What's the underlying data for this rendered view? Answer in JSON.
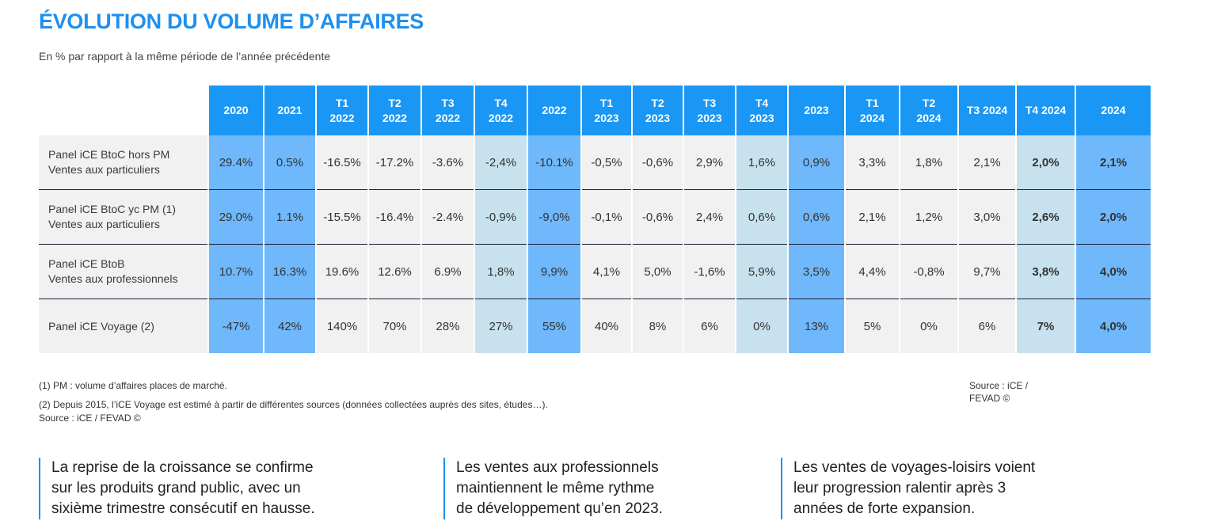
{
  "title": "ÉVOLUTION DU VOLUME D’AFFAIRES",
  "subtitle": "En % par rapport à la même période de l’année précédente",
  "columns": [
    {
      "line1": "2020",
      "line2": "",
      "style": "blue"
    },
    {
      "line1": "2021",
      "line2": "",
      "style": "blue"
    },
    {
      "line1": "T1",
      "line2": "2022",
      "style": ""
    },
    {
      "line1": "T2",
      "line2": "2022",
      "style": ""
    },
    {
      "line1": "T3",
      "line2": "2022",
      "style": ""
    },
    {
      "line1": "T4",
      "line2": "2022",
      "style": "light"
    },
    {
      "line1": "2022",
      "line2": "",
      "style": "blue"
    },
    {
      "line1": "T1",
      "line2": "2023",
      "style": ""
    },
    {
      "line1": "T2",
      "line2": "2023",
      "style": ""
    },
    {
      "line1": "T3",
      "line2": "2023",
      "style": ""
    },
    {
      "line1": "T4",
      "line2": "2023",
      "style": "light"
    },
    {
      "line1": "2023",
      "line2": "",
      "style": "blue"
    },
    {
      "line1": "T1",
      "line2": "2024",
      "style": ""
    },
    {
      "line1": "T2",
      "line2": "2024",
      "style": ""
    },
    {
      "line1": "T3 2024",
      "line2": "",
      "style": ""
    },
    {
      "line1": "T4 2024",
      "line2": "",
      "style": "light bold"
    },
    {
      "line1": "2024",
      "line2": "",
      "style": "blue bold"
    }
  ],
  "rows": [
    {
      "label1": "Panel iCE BtoC hors PM",
      "label2": "Ventes aux particuliers",
      "values": [
        "29.4%",
        "0.5%",
        "-16.5%",
        "-17.2%",
        "-3.6%",
        "-2,4%",
        "-10.1%",
        "-0,5%",
        "-0,6%",
        "2,9%",
        "1,6%",
        "0,9%",
        "3,3%",
        "1,8%",
        "2,1%",
        "2,0%",
        "2,1%"
      ]
    },
    {
      "label1": "Panel iCE BtoC yc PM (1)",
      "label2": "Ventes aux particuliers",
      "values": [
        "29.0%",
        "1.1%",
        "-15.5%",
        "-16.4%",
        "-2.4%",
        "-0,9%",
        "-9,0%",
        "-0,1%",
        "-0,6%",
        "2,4%",
        "0,6%",
        "0,6%",
        "2,1%",
        "1,2%",
        "3,0%",
        "2,6%",
        "2,0%"
      ]
    },
    {
      "label1": "Panel iCE BtoB",
      "label2": "Ventes aux professionnels",
      "values": [
        "10.7%",
        "16.3%",
        "19.6%",
        "12.6%",
        "6.9%",
        "1,8%",
        "9,9%",
        "4,1%",
        "5,0%",
        "-1,6%",
        "5,9%",
        "3,5%",
        "4,4%",
        "-0,8%",
        "9,7%",
        "3,8%",
        "4,0%"
      ]
    },
    {
      "label1": "Panel iCE Voyage (2)",
      "label2": "",
      "values": [
        "-47%",
        "42%",
        "140%",
        "70%",
        "28%",
        "27%",
        "55%",
        "40%",
        "8%",
        "6%",
        "0%",
        "13%",
        "5%",
        "0%",
        "6%",
        "7%",
        "4,0%"
      ]
    }
  ],
  "notes": {
    "note1": "(1) PM : volume d’affaires places de marché.",
    "note2": "(2) Depuis 2015, l’iCE Voyage est estimé à partir de différentes sources (données collectées auprès des sites, études…).",
    "source_left": "Source : iCE / FEVAD ©",
    "source_right_line1": "Source : iCE /",
    "source_right_line2": "FEVAD ©"
  },
  "callouts": [
    {
      "line1": "La reprise de la croissance se confirme",
      "line2": "sur les produits grand public, avec un",
      "line3": "sixième trimestre consécutif en hausse."
    },
    {
      "line1": "Les ventes aux professionnels",
      "line2": "maintiennent le même rythme",
      "line3": "de développement qu’en 2023."
    },
    {
      "line1": "Les ventes de voyages-loisirs voient",
      "line2": "leur progression ralentir après 3",
      "line3": "années de forte expansion."
    }
  ]
}
